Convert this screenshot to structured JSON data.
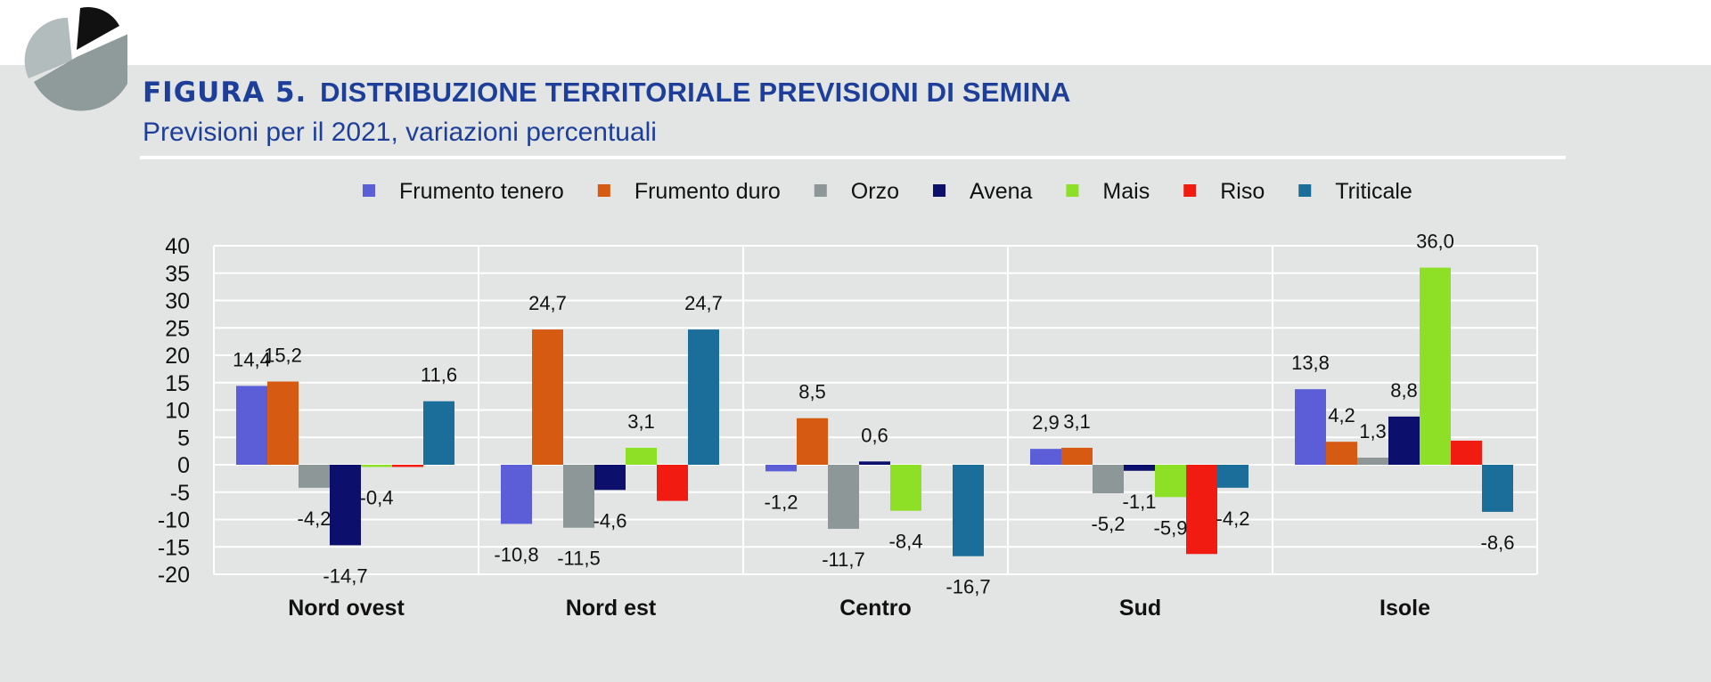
{
  "figure": {
    "number_label": "FIGURA 5.",
    "title": "DISTRIBUZIONE TERRITORIALE PREVISIONI DI SEMINA",
    "subtitle": "Previsioni per il 2021, variazioni percentuali"
  },
  "logo": {
    "icon": "pie-chart-icon"
  },
  "chart_data": {
    "type": "bar",
    "categories": [
      "Nord ovest",
      "Nord est",
      "Centro",
      "Sud",
      "Isole"
    ],
    "series": [
      {
        "name": "Frumento tenero",
        "color": "#5b5ed6",
        "values": [
          14.4,
          -10.8,
          -1.2,
          2.9,
          13.8
        ],
        "labels": [
          "14,4",
          "-10,8",
          "-1,2",
          "2,9",
          "13,8"
        ]
      },
      {
        "name": "Frumento duro",
        "color": "#d65a12",
        "values": [
          15.2,
          24.7,
          8.5,
          3.1,
          4.2
        ],
        "labels": [
          "15,2",
          "24,7",
          "8,5",
          "3,1",
          "4,2"
        ]
      },
      {
        "name": "Orzo",
        "color": "#8d9797",
        "values": [
          -4.2,
          -11.5,
          -11.7,
          -5.2,
          1.3
        ],
        "labels": [
          "-4,2",
          "-11,5",
          "-11,7",
          "-5,2",
          "1,3"
        ]
      },
      {
        "name": "Avena",
        "color": "#0c0f6b",
        "values": [
          -14.7,
          -4.6,
          0.6,
          -1.1,
          8.8
        ],
        "labels": [
          "-14,7",
          "-4,6",
          "0,6",
          "-1,1",
          "8,8"
        ]
      },
      {
        "name": "Mais",
        "color": "#8ee026",
        "values": [
          -0.4,
          3.1,
          -8.4,
          -5.9,
          36.0
        ],
        "labels": [
          "-0,4",
          "3,1",
          "-8,4",
          "-5,9",
          "36,0"
        ]
      },
      {
        "name": "Riso",
        "color": "#f21b12",
        "values": [
          -0.4,
          -6.6,
          0,
          -16.3,
          4.4
        ],
        "labels": [
          "",
          "",
          "",
          "",
          ""
        ]
      },
      {
        "name": "Triticale",
        "color": "#1b6e9a",
        "values": [
          11.6,
          24.7,
          -16.7,
          -4.2,
          -8.6
        ],
        "labels": [
          "11,6",
          "24,7",
          "-16,7",
          "-4,2",
          "-8,6"
        ]
      }
    ],
    "y_ticks": [
      "40",
      "35",
      "30",
      "25",
      "20",
      "15",
      "10",
      "5",
      "0",
      "-5",
      "-10",
      "-15",
      "-20"
    ],
    "ylim": [
      -20,
      40
    ],
    "grid": true,
    "legend_position": "top"
  }
}
